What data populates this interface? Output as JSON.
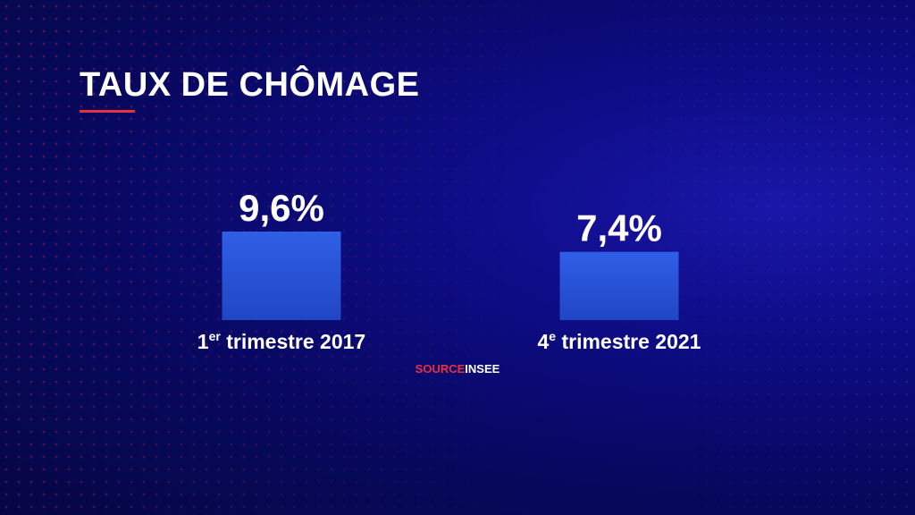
{
  "header": {
    "title": "TAUX DE CHÔMAGE"
  },
  "source": {
    "key": "SOURCE",
    "value": "INSEE"
  },
  "colors": {
    "bar": "#2a55d8",
    "accent": "#e8303e",
    "text": "#ffffff"
  },
  "chart_data": {
    "type": "bar",
    "title": "TAUX DE CHÔMAGE",
    "xlabel": "",
    "ylabel": "",
    "grid": false,
    "categories": [
      {
        "base": "1",
        "sup": "er",
        "rest": " trimestre 2017"
      },
      {
        "base": "4",
        "sup": "e",
        "rest": " trimestre 2021"
      }
    ],
    "values": [
      9.6,
      7.4
    ],
    "value_labels": [
      "9,6%",
      "7,4%"
    ]
  }
}
